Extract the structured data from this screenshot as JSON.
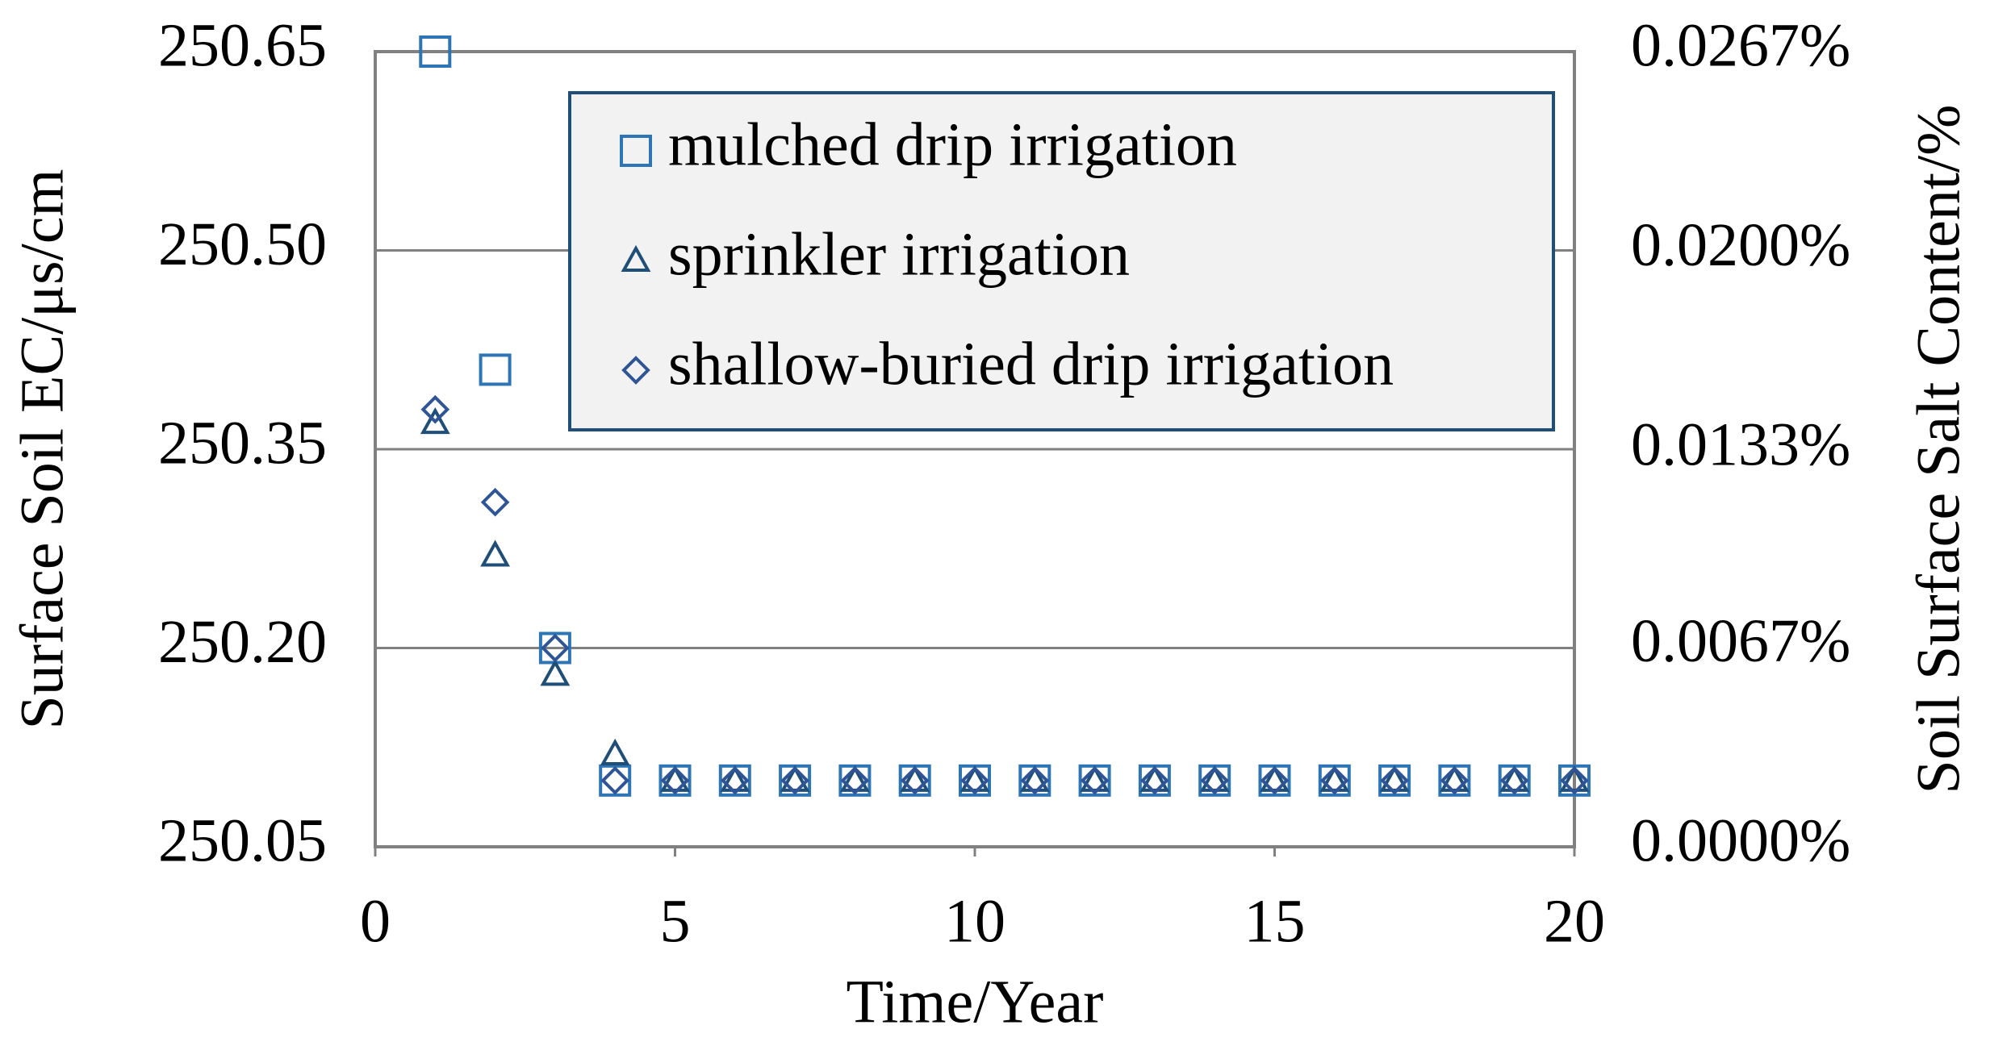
{
  "chart_data": {
    "type": "scatter",
    "x_label": "Time/Year",
    "y_label": "Surface Soil EC/μs/cm",
    "y2_label": "Soil Surface Salt Content/%",
    "x": [
      1,
      2,
      3,
      4,
      5,
      6,
      7,
      8,
      9,
      10,
      11,
      12,
      13,
      14,
      15,
      16,
      17,
      18,
      19,
      20
    ],
    "series": [
      {
        "name": "mulched drip irrigation",
        "color": "#2e75b6",
        "marker": "square",
        "values": [
          250.65,
          250.41,
          250.2,
          250.1,
          250.1,
          250.1,
          250.1,
          250.1,
          250.1,
          250.1,
          250.1,
          250.1,
          250.1,
          250.1,
          250.1,
          250.1,
          250.1,
          250.1,
          250.1,
          250.1
        ]
      },
      {
        "name": "sprinkler irrigation",
        "color": "#1f4e79",
        "marker": "triangle",
        "values": [
          250.37,
          250.27,
          250.18,
          250.12,
          250.1,
          250.1,
          250.1,
          250.1,
          250.1,
          250.1,
          250.1,
          250.1,
          250.1,
          250.1,
          250.1,
          250.1,
          250.1,
          250.1,
          250.1,
          250.1
        ]
      },
      {
        "name": "shallow-buried drip irrigation",
        "color": "#2f5597",
        "marker": "diamond",
        "values": [
          250.38,
          250.31,
          250.2,
          250.1,
          250.1,
          250.1,
          250.1,
          250.1,
          250.1,
          250.1,
          250.1,
          250.1,
          250.1,
          250.1,
          250.1,
          250.1,
          250.1,
          250.1,
          250.1,
          250.1
        ]
      }
    ],
    "xlim": [
      0,
      20
    ],
    "xticks": [
      0,
      5,
      10,
      15,
      20
    ],
    "ylim": [
      250.05,
      250.65
    ],
    "yticks": [
      250.05,
      {
        "value": 250.2,
        "label": "250.20"
      },
      250.35,
      {
        "value": 250.5,
        "label": "250.50"
      },
      250.65
    ],
    "y2lim": [
      0,
      0.0267
    ],
    "y2ticks": [
      {
        "value": 0,
        "label": "0.0000%"
      },
      {
        "value": 0.0067,
        "label": "0.0067%"
      },
      {
        "value": 0.0133,
        "label": "0.0133%"
      },
      {
        "value": 0.02,
        "label": "0.0200%"
      },
      {
        "value": 0.0267,
        "label": "0.0267%"
      }
    ],
    "grid": true,
    "legend": "upper right"
  }
}
